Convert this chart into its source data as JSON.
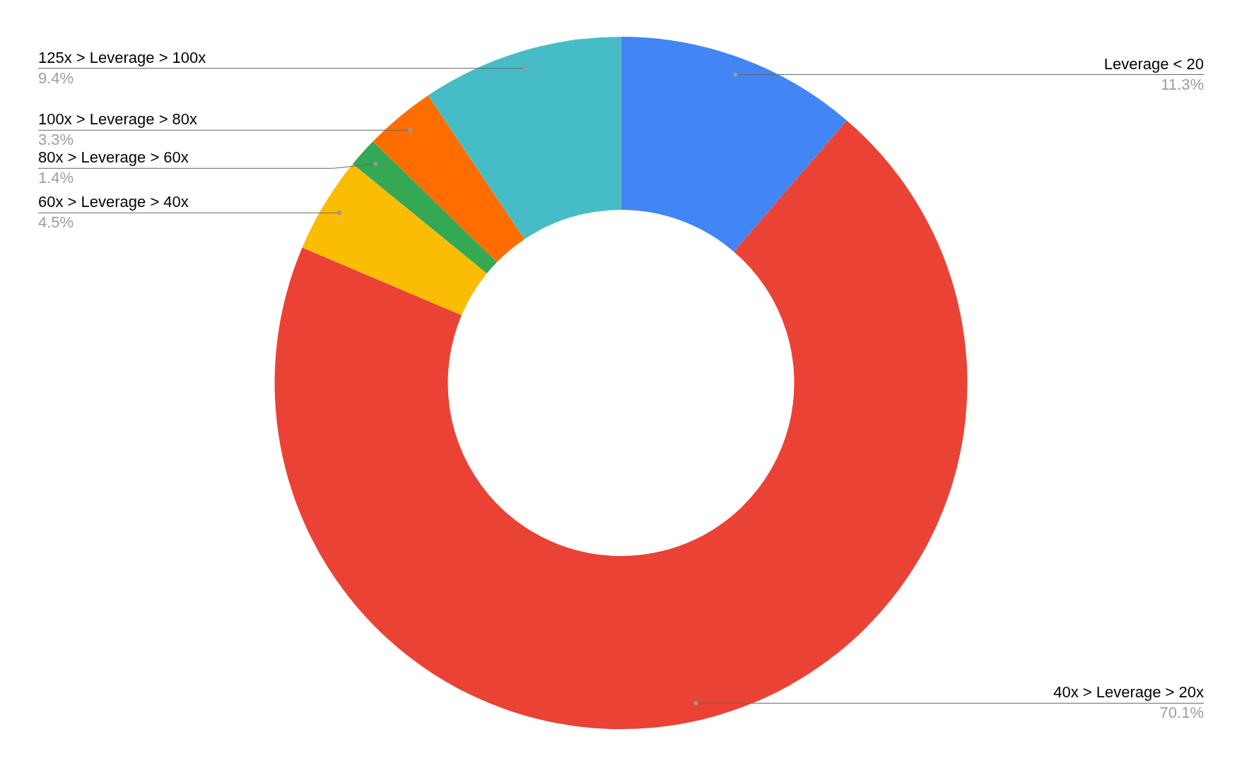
{
  "chart_data": {
    "type": "donut",
    "categories": [
      "Leverage < 20",
      "40x > Leverage > 20x",
      "60x > Leverage > 40x",
      "80x > Leverage > 60x",
      "100x > Leverage > 80x",
      "125x > Leverage > 100x"
    ],
    "values": [
      11.3,
      70.1,
      4.5,
      1.4,
      3.3,
      9.4
    ],
    "value_labels": [
      "11.3%",
      "70.1%",
      "4.5%",
      "1.4%",
      "3.3%",
      "9.4%"
    ],
    "colors": [
      "#4285f4",
      "#ea4335",
      "#fbbc04",
      "#34a853",
      "#ff6d01",
      "#46bdc6"
    ]
  }
}
